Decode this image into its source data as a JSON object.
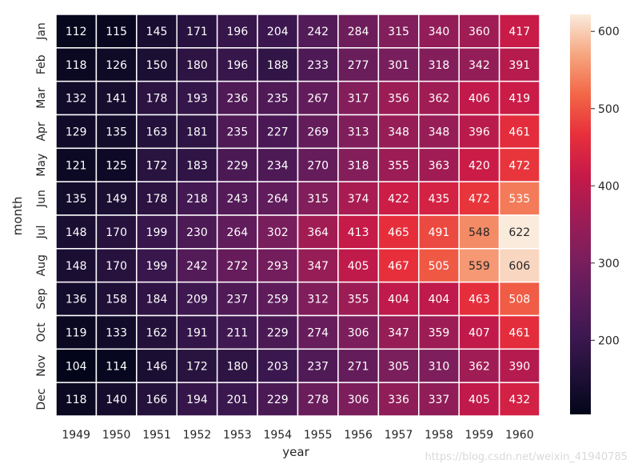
{
  "chart_data": {
    "type": "heatmap",
    "title": "",
    "xlabel": "year",
    "ylabel": "month",
    "x_categories": [
      "1949",
      "1950",
      "1951",
      "1952",
      "1953",
      "1954",
      "1955",
      "1956",
      "1957",
      "1958",
      "1959",
      "1960"
    ],
    "y_categories": [
      "Jan",
      "Feb",
      "Mar",
      "Apr",
      "May",
      "Jun",
      "Jul",
      "Aug",
      "Sep",
      "Oct",
      "Nov",
      "Dec"
    ],
    "values": [
      [
        112,
        115,
        145,
        171,
        196,
        204,
        242,
        284,
        315,
        340,
        360,
        417
      ],
      [
        118,
        126,
        150,
        180,
        196,
        188,
        233,
        277,
        301,
        318,
        342,
        391
      ],
      [
        132,
        141,
        178,
        193,
        236,
        235,
        267,
        317,
        356,
        362,
        406,
        419
      ],
      [
        129,
        135,
        163,
        181,
        235,
        227,
        269,
        313,
        348,
        348,
        396,
        461
      ],
      [
        121,
        125,
        172,
        183,
        229,
        234,
        270,
        318,
        355,
        363,
        420,
        472
      ],
      [
        135,
        149,
        178,
        218,
        243,
        264,
        315,
        374,
        422,
        435,
        472,
        535
      ],
      [
        148,
        170,
        199,
        230,
        264,
        302,
        364,
        413,
        465,
        491,
        548,
        622
      ],
      [
        148,
        170,
        199,
        242,
        272,
        293,
        347,
        405,
        467,
        505,
        559,
        606
      ],
      [
        136,
        158,
        184,
        209,
        237,
        259,
        312,
        355,
        404,
        404,
        463,
        508
      ],
      [
        119,
        133,
        162,
        191,
        211,
        229,
        274,
        306,
        347,
        359,
        407,
        461
      ],
      [
        104,
        114,
        146,
        172,
        180,
        203,
        237,
        271,
        305,
        310,
        362,
        390
      ],
      [
        118,
        140,
        166,
        194,
        201,
        229,
        278,
        306,
        336,
        337,
        405,
        432
      ]
    ],
    "colormap": "rocket",
    "vmin": 104,
    "vmax": 622,
    "annotate": true,
    "colorbar": {
      "ticks": [
        200,
        300,
        400,
        500,
        600
      ]
    },
    "grid": false,
    "legend": "colorbar-right"
  },
  "watermark": "https://blog.csdn.net/weixin_41940785"
}
